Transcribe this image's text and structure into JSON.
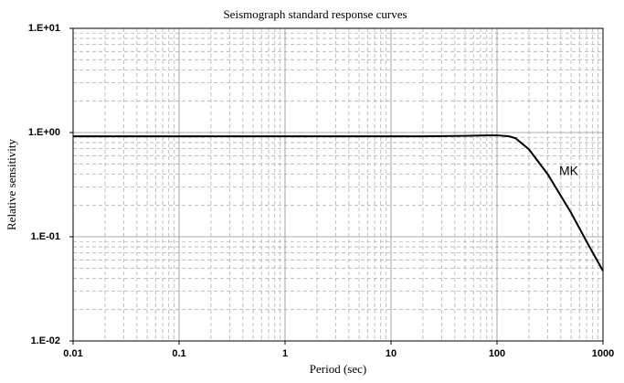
{
  "chart_data": {
    "type": "line",
    "title": "Seismograph standard response curves",
    "x_label": "Period (sec)",
    "y_label": "Relative sensitivity",
    "x_scale": "log",
    "y_scale": "log",
    "grid": true,
    "xlim": [
      0.01,
      1000
    ],
    "ylim": [
      0.01,
      10
    ],
    "xticks": [
      0.01,
      0.1,
      1,
      10,
      100,
      1000
    ],
    "yticks": [
      {
        "value": 0.01,
        "label": "1.E-02"
      },
      {
        "value": 0.1,
        "label": "1.E-01"
      },
      {
        "value": 1,
        "label": "1.E+00"
      },
      {
        "value": 10,
        "label": "1.E+01"
      }
    ],
    "xminorticks": [
      0.02,
      0.03,
      0.04,
      0.05,
      0.06,
      0.07,
      0.08,
      0.09,
      0.2,
      0.3,
      0.4,
      0.5,
      0.6,
      0.7,
      0.8,
      0.9,
      2,
      3,
      4,
      5,
      6,
      7,
      8,
      9,
      20,
      30,
      40,
      50,
      60,
      70,
      80,
      90,
      200,
      300,
      400,
      500,
      600,
      700,
      800,
      900
    ],
    "yminorticks": [
      0.02,
      0.03,
      0.04,
      0.05,
      0.06,
      0.07,
      0.08,
      0.09,
      0.2,
      0.3,
      0.4,
      0.5,
      0.6,
      0.7,
      0.8,
      0.9,
      2,
      3,
      4,
      5,
      6,
      7,
      8,
      9
    ],
    "annotations": [
      {
        "text": "MK"
      }
    ],
    "series": [
      {
        "name": "MK",
        "color": "#000000",
        "x": [
          0.01,
          0.1,
          1,
          10,
          20,
          50,
          80,
          100,
          130,
          150,
          200,
          300,
          500,
          700,
          1000
        ],
        "values": [
          0.92,
          0.92,
          0.92,
          0.92,
          0.92,
          0.93,
          0.94,
          0.94,
          0.92,
          0.88,
          0.69,
          0.4,
          0.17,
          0.09,
          0.047
        ]
      }
    ]
  }
}
